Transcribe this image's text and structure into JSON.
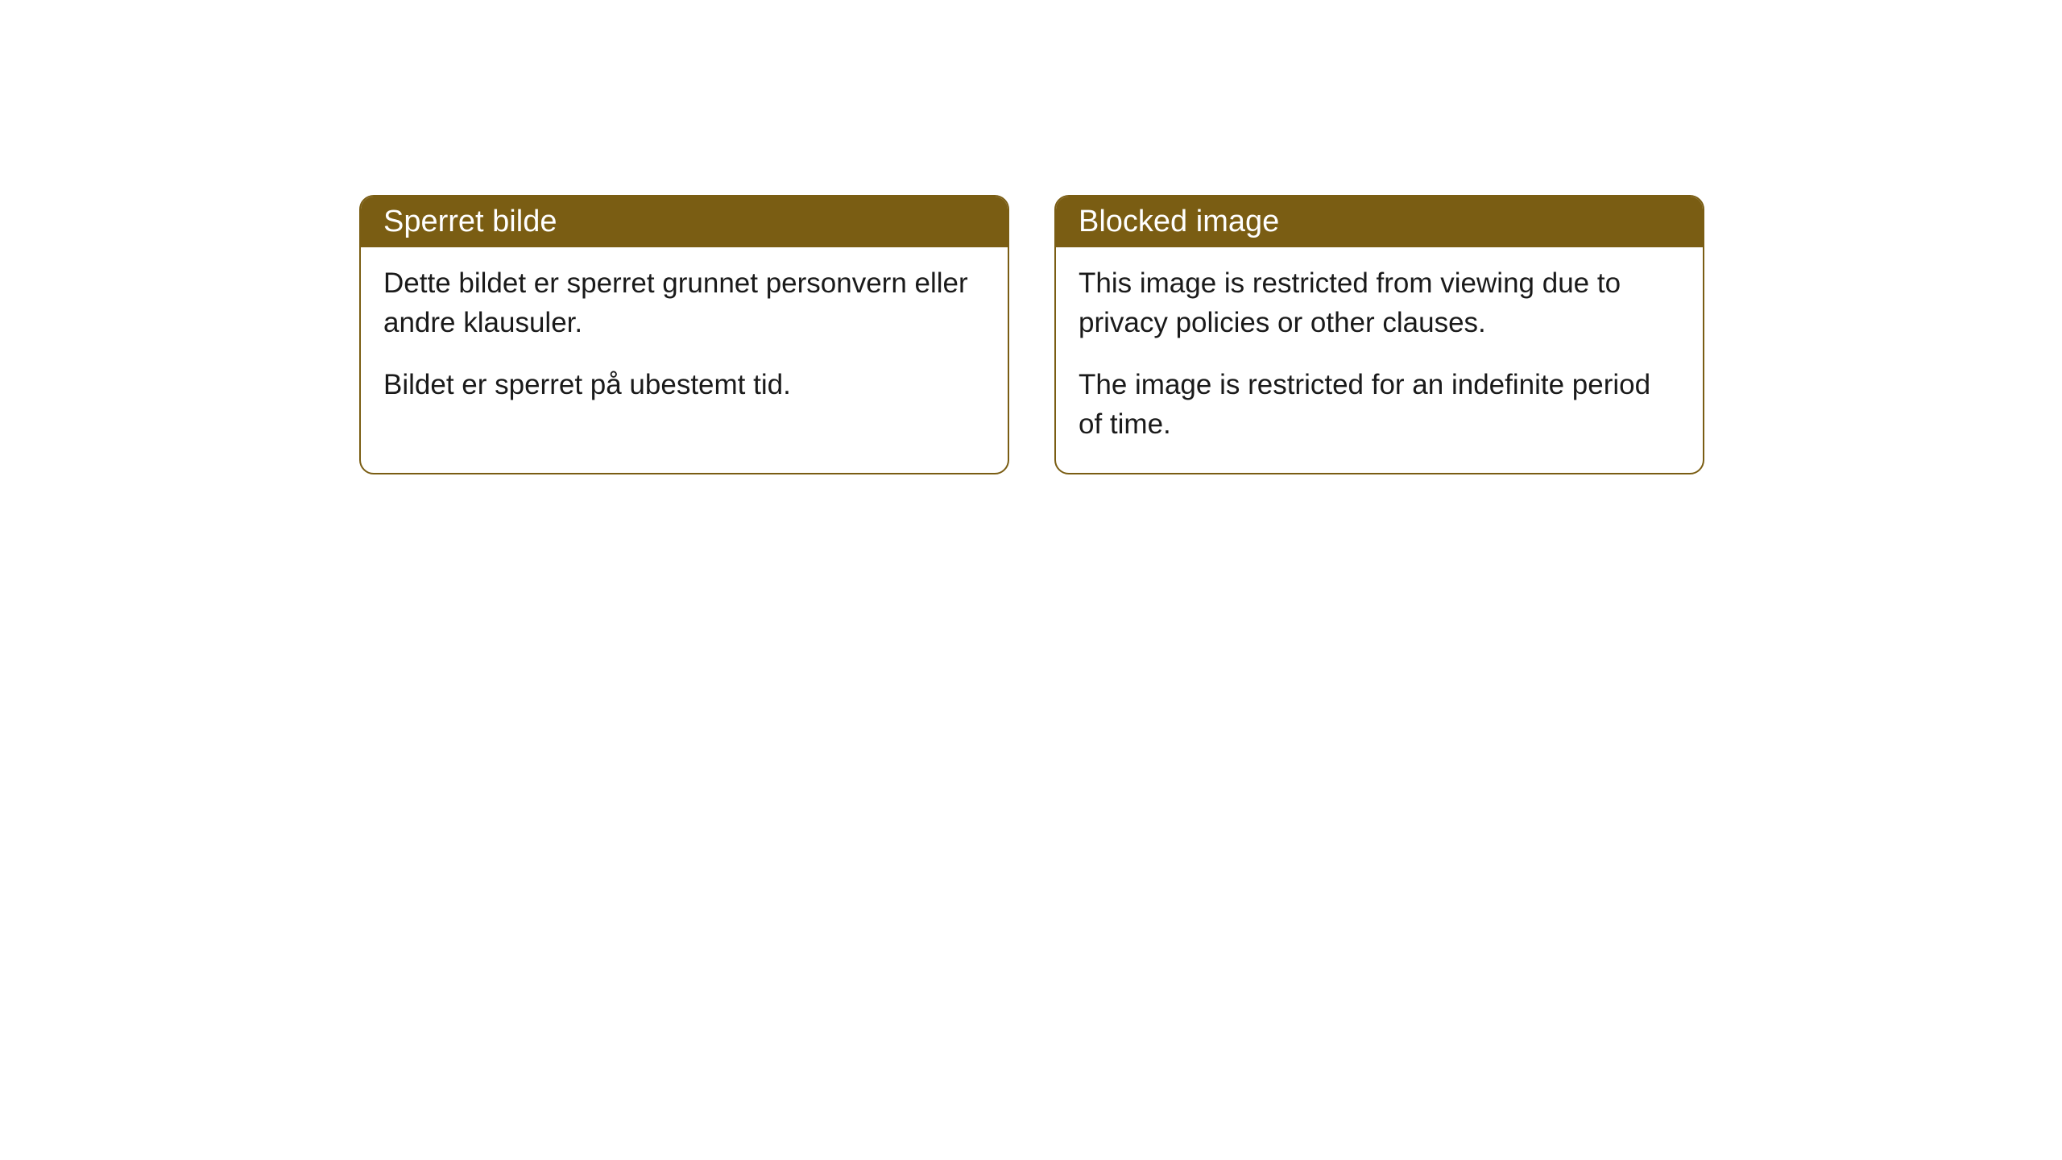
{
  "cards": [
    {
      "title": "Sperret bilde",
      "paragraph1": "Dette bildet er sperret grunnet personvern eller andre klausuler.",
      "paragraph2": "Bildet er sperret på ubestemt tid."
    },
    {
      "title": "Blocked image",
      "paragraph1": "This image is restricted from viewing due to privacy policies or other clauses.",
      "paragraph2": "The image is restricted for an indefinite period of time."
    }
  ],
  "styling": {
    "header_background": "#7a5d13",
    "header_text_color": "#ffffff",
    "border_color": "#7a5d13",
    "body_text_color": "#1a1a1a",
    "card_background": "#ffffff",
    "border_radius": 18,
    "title_fontsize": 38,
    "body_fontsize": 35
  }
}
